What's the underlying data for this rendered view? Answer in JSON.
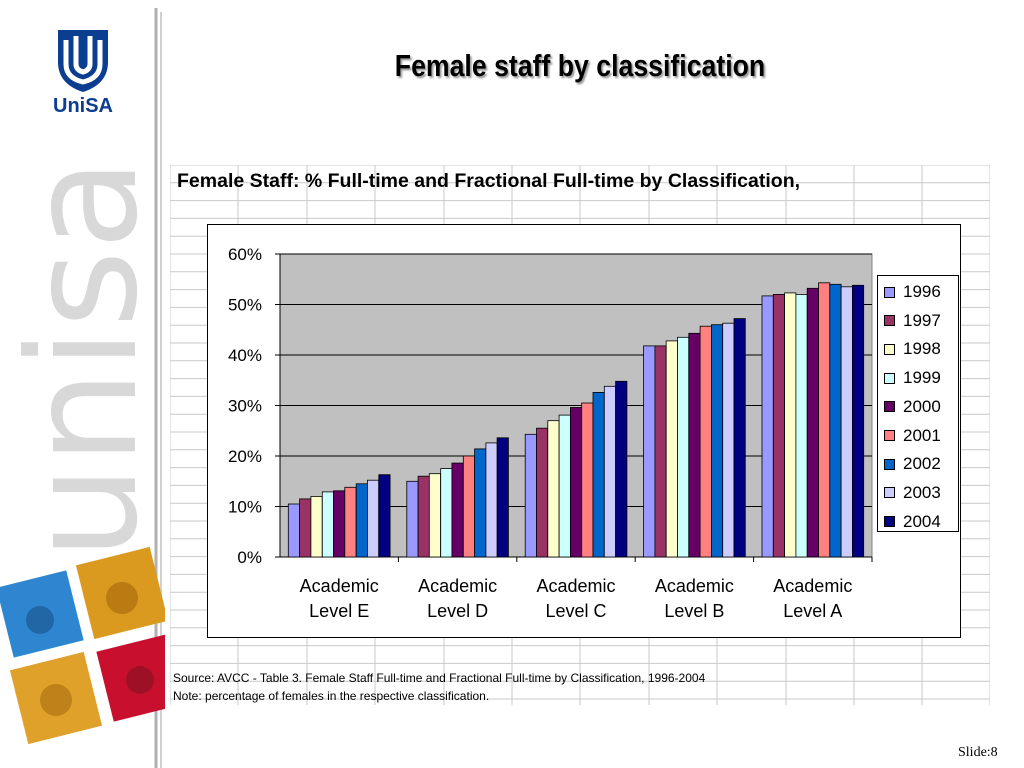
{
  "slide": {
    "title": "Female staff by classification",
    "slide_number": "Slide:8",
    "logo_text": "UniSA",
    "watermark_text": "unisa"
  },
  "sheet": {
    "header": "Female Staff: % Full-time and Fractional Full-time by Classification,",
    "source": "Source: AVCC - Table 3. Female Staff Full-time and Fractional Full-time by Classification, 1996-2004",
    "note": "Note:  percentage of females in the respective classification."
  },
  "colors": {
    "plot_bg": "#c0c0c0",
    "logo_blue": "#0b3d91",
    "series": [
      "#9999ff",
      "#993366",
      "#ffffcc",
      "#ccffff",
      "#660066",
      "#ff8080",
      "#0066cc",
      "#ccccff",
      "#000080"
    ]
  },
  "chart_data": {
    "type": "bar",
    "title": "",
    "xlabel": "",
    "ylabel": "",
    "categories": [
      "Academic Level E",
      "Academic Level D",
      "Academic Level C",
      "Academic Level B",
      "Academic Level A"
    ],
    "category_lines": [
      [
        "Academic",
        "Level E"
      ],
      [
        "Academic",
        "Level D"
      ],
      [
        "Academic",
        "Level C"
      ],
      [
        "Academic",
        "Level B"
      ],
      [
        "Academic",
        "Level A"
      ]
    ],
    "ylim": [
      0,
      60
    ],
    "y_ticks": [
      "0%",
      "10%",
      "20%",
      "30%",
      "40%",
      "50%",
      "60%"
    ],
    "y_tick_values": [
      0,
      10,
      20,
      30,
      40,
      50,
      60
    ],
    "grid": true,
    "legend_position": "right",
    "series": [
      {
        "name": "1996",
        "values": [
          10.5,
          15.0,
          24.3,
          41.8,
          51.7
        ]
      },
      {
        "name": "1997",
        "values": [
          11.5,
          16.0,
          25.5,
          41.8,
          52.0
        ]
      },
      {
        "name": "1998",
        "values": [
          12.0,
          16.5,
          27.0,
          42.8,
          52.3
        ]
      },
      {
        "name": "1999",
        "values": [
          12.9,
          17.5,
          28.1,
          43.5,
          52.0
        ]
      },
      {
        "name": "2000",
        "values": [
          13.1,
          18.6,
          29.6,
          44.3,
          53.2
        ]
      },
      {
        "name": "2001",
        "values": [
          13.8,
          20.0,
          30.5,
          45.7,
          54.3
        ]
      },
      {
        "name": "2002",
        "values": [
          14.5,
          21.4,
          32.6,
          46.0,
          54.0
        ]
      },
      {
        "name": "2003",
        "values": [
          15.2,
          22.6,
          33.8,
          46.3,
          53.5
        ]
      },
      {
        "name": "2004",
        "values": [
          16.3,
          23.6,
          34.8,
          47.2,
          53.8
        ]
      }
    ]
  }
}
